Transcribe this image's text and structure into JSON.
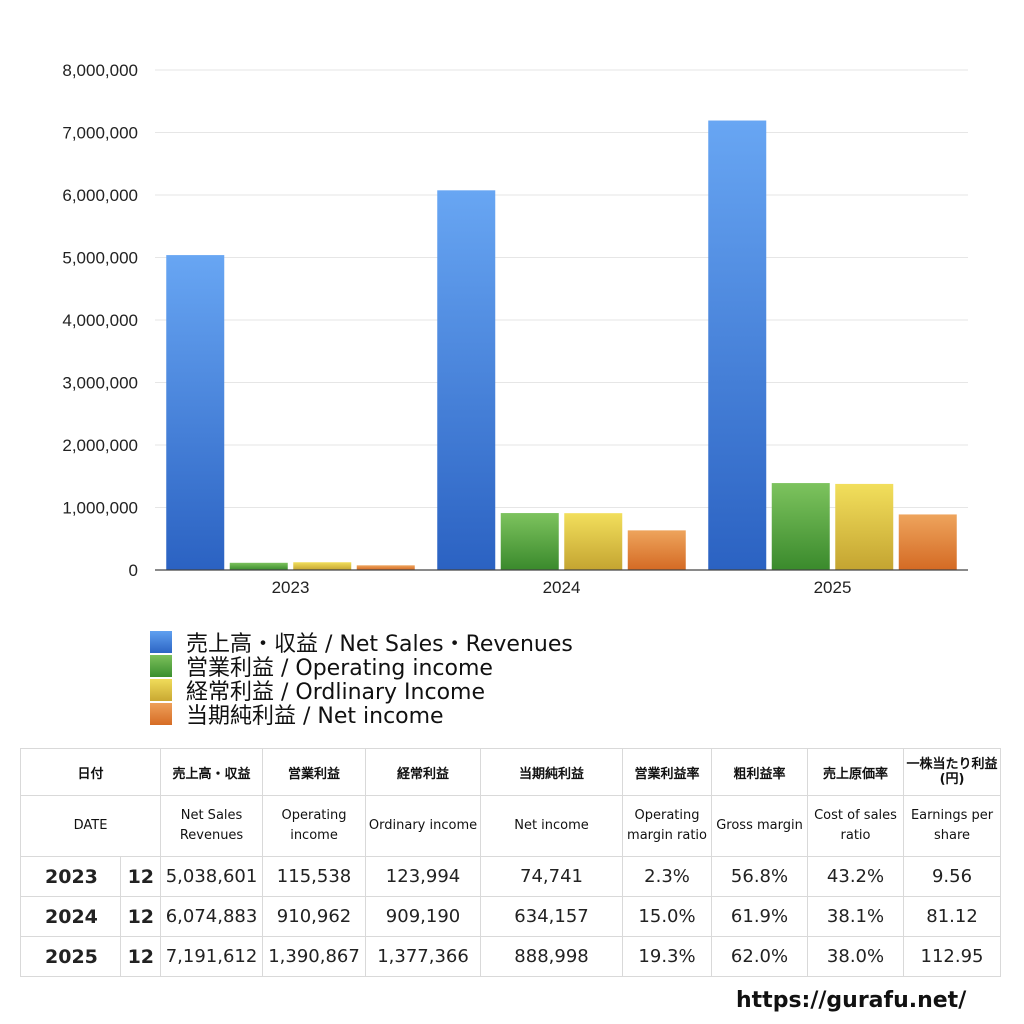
{
  "chart_data": {
    "type": "bar",
    "categories": [
      "2023",
      "2024",
      "2025"
    ],
    "series": [
      {
        "name": "売上高・収益 / Net Sales・Revenues",
        "values": [
          5038601,
          6074883,
          7191612
        ],
        "color": "#3f7ee0"
      },
      {
        "name": "営業利益 / Operating income",
        "values": [
          115538,
          910962,
          1390867
        ],
        "color": "#4aa33c"
      },
      {
        "name": "経常利益 / Ordlinary Income",
        "values": [
          123994,
          909190,
          1377366
        ],
        "color": "#e2c63a"
      },
      {
        "name": "当期純利益 / Net income",
        "values": [
          74741,
          634157,
          888998
        ],
        "color": "#e07c30"
      }
    ],
    "ylim": [
      0,
      8000000
    ],
    "yticks": [
      0,
      1000000,
      2000000,
      3000000,
      4000000,
      5000000,
      6000000,
      7000000,
      8000000
    ],
    "ytick_labels": [
      "0",
      "1,000,000",
      "2,000,000",
      "3,000,000",
      "4,000,000",
      "5,000,000",
      "6,000,000",
      "7,000,000",
      "8,000,000"
    ],
    "grid": true,
    "legend_position": "bottom-left"
  },
  "legend": {
    "items": [
      {
        "label": "売上高・収益 / Net Sales・Revenues",
        "color": "#3f7ee0"
      },
      {
        "label": "営業利益 / Operating income",
        "color": "#4aa33c"
      },
      {
        "label": "経常利益 / Ordlinary Income",
        "color": "#e2c63a"
      },
      {
        "label": "当期純利益 / Net income",
        "color": "#e07c30"
      }
    ]
  },
  "table": {
    "headers_jp": [
      "日付",
      "売上高・収益",
      "営業利益",
      "経常利益",
      "当期純利益",
      "営業利益率",
      "粗利益率",
      "売上原価率",
      "一株当たり利益 (円)"
    ],
    "headers_en": [
      "DATE",
      "Net Sales Revenues",
      "Operating income",
      "Ordinary income",
      "Net income",
      "Operating margin ratio",
      "Gross margin",
      "Cost of sales ratio",
      "Earnings per share"
    ],
    "rows": [
      {
        "year": "2023",
        "month": "12",
        "net_sales": "5,038,601",
        "operating": "115,538",
        "ordinary": "123,994",
        "net_income": "74,741",
        "op_margin": "2.3%",
        "gross_margin": "56.8%",
        "cost_ratio": "43.2%",
        "eps": "9.56"
      },
      {
        "year": "2024",
        "month": "12",
        "net_sales": "6,074,883",
        "operating": "910,962",
        "ordinary": "909,190",
        "net_income": "634,157",
        "op_margin": "15.0%",
        "gross_margin": "61.9%",
        "cost_ratio": "38.1%",
        "eps": "81.12"
      },
      {
        "year": "2025",
        "month": "12",
        "net_sales": "7,191,612",
        "operating": "1,390,867",
        "ordinary": "1,377,366",
        "net_income": "888,998",
        "op_margin": "19.3%",
        "gross_margin": "62.0%",
        "cost_ratio": "38.0%",
        "eps": "112.95"
      }
    ]
  },
  "footer": {
    "url": "https://gurafu.net/"
  }
}
